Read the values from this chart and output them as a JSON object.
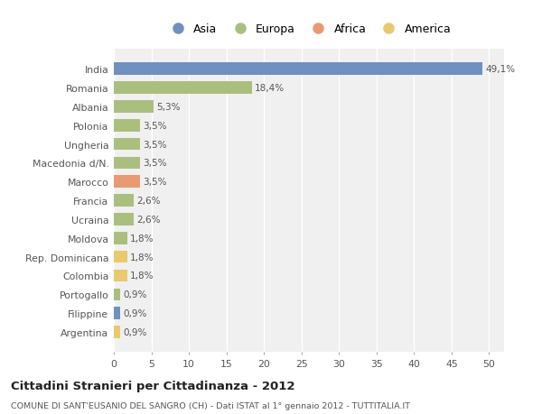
{
  "countries": [
    "India",
    "Romania",
    "Albania",
    "Polonia",
    "Ungheria",
    "Macedonia d/N.",
    "Marocco",
    "Francia",
    "Ucraina",
    "Moldova",
    "Rep. Dominicana",
    "Colombia",
    "Portogallo",
    "Filippine",
    "Argentina"
  ],
  "values": [
    49.1,
    18.4,
    5.3,
    3.5,
    3.5,
    3.5,
    3.5,
    2.6,
    2.6,
    1.8,
    1.8,
    1.8,
    0.9,
    0.9,
    0.9
  ],
  "labels": [
    "49,1%",
    "18,4%",
    "5,3%",
    "3,5%",
    "3,5%",
    "3,5%",
    "3,5%",
    "2,6%",
    "2,6%",
    "1,8%",
    "1,8%",
    "1,8%",
    "0,9%",
    "0,9%",
    "0,9%"
  ],
  "colors": [
    "#7090bf",
    "#aabf7e",
    "#aabf7e",
    "#aabf7e",
    "#aabf7e",
    "#aabf7e",
    "#e89a72",
    "#aabf7e",
    "#aabf7e",
    "#aabf7e",
    "#e8c96e",
    "#e8c96e",
    "#aabf7e",
    "#7090bf",
    "#e8c96e"
  ],
  "legend_labels": [
    "Asia",
    "Europa",
    "Africa",
    "America"
  ],
  "legend_colors": [
    "#7090bf",
    "#aabf7e",
    "#e89a72",
    "#e8c96e"
  ],
  "title": "Cittadini Stranieri per Cittadinanza - 2012",
  "subtitle": "COMUNE DI SANT'EUSANIO DEL SANGRO (CH) - Dati ISTAT al 1° gennaio 2012 - TUTTITALIA.IT",
  "xlim": [
    0,
    52
  ],
  "xticks": [
    0,
    5,
    10,
    15,
    20,
    25,
    30,
    35,
    40,
    45,
    50
  ],
  "bg_color": "#ffffff",
  "plot_bg_color": "#f0f0f0",
  "grid_color": "#ffffff",
  "bar_height": 0.65
}
